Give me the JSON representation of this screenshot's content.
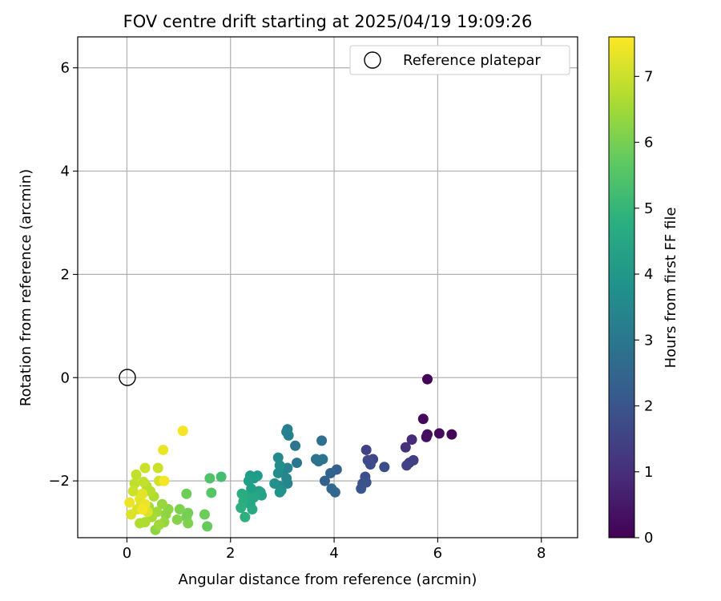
{
  "chart_data": {
    "type": "scatter",
    "title": "FOV centre drift starting at 2025/04/19 19:09:26",
    "xlabel": "Angular distance from reference (arcmin)",
    "ylabel": "Rotation from reference (arcmin)",
    "xlim": [
      -0.95,
      8.7
    ],
    "ylim": [
      -3.1,
      6.6
    ],
    "xticks": [
      0,
      2,
      4,
      6,
      8
    ],
    "yticks": [
      -2,
      0,
      2,
      4,
      6
    ],
    "xtick_labels": [
      "0",
      "2",
      "4",
      "6",
      "8"
    ],
    "ytick_labels": [
      "−2",
      "0",
      "2",
      "4",
      "6"
    ],
    "grid": true,
    "legend": {
      "position": "top-right",
      "entries": [
        "Reference platepar"
      ]
    },
    "reference_point": {
      "x": 0,
      "y": 0
    },
    "colorbar": {
      "label": "Hours from first FF file",
      "colormap": "viridis",
      "range": [
        0,
        7.6
      ],
      "ticks": [
        0,
        1,
        2,
        3,
        4,
        5,
        6,
        7
      ],
      "tick_labels": [
        "0",
        "1",
        "2",
        "3",
        "4",
        "5",
        "6",
        "7"
      ]
    },
    "points": [
      {
        "x": 5.8,
        "y": -0.03,
        "h": 0.05
      },
      {
        "x": 5.72,
        "y": -0.8,
        "h": 0.15
      },
      {
        "x": 5.8,
        "y": -1.1,
        "h": 0.25
      },
      {
        "x": 6.03,
        "y": -1.08,
        "h": 0.2
      },
      {
        "x": 6.27,
        "y": -1.1,
        "h": 0.1
      },
      {
        "x": 5.78,
        "y": -1.15,
        "h": 0.3
      },
      {
        "x": 5.5,
        "y": -1.2,
        "h": 0.9
      },
      {
        "x": 5.38,
        "y": -1.35,
        "h": 1.1
      },
      {
        "x": 5.45,
        "y": -1.65,
        "h": 1.3
      },
      {
        "x": 5.53,
        "y": -1.6,
        "h": 1.4
      },
      {
        "x": 5.4,
        "y": -1.7,
        "h": 1.5
      },
      {
        "x": 4.62,
        "y": -1.4,
        "h": 1.5
      },
      {
        "x": 4.75,
        "y": -1.58,
        "h": 1.6
      },
      {
        "x": 4.7,
        "y": -1.68,
        "h": 1.7
      },
      {
        "x": 4.65,
        "y": -1.6,
        "h": 1.7
      },
      {
        "x": 4.97,
        "y": -1.73,
        "h": 1.8
      },
      {
        "x": 4.6,
        "y": -1.92,
        "h": 1.8
      },
      {
        "x": 4.55,
        "y": -2.05,
        "h": 1.9
      },
      {
        "x": 4.62,
        "y": -2.03,
        "h": 1.9
      },
      {
        "x": 4.52,
        "y": -2.15,
        "h": 2.0
      },
      {
        "x": 4.05,
        "y": -1.78,
        "h": 2.3
      },
      {
        "x": 3.93,
        "y": -1.85,
        "h": 2.4
      },
      {
        "x": 3.82,
        "y": -2.0,
        "h": 2.4
      },
      {
        "x": 3.95,
        "y": -2.15,
        "h": 2.5
      },
      {
        "x": 4.02,
        "y": -2.22,
        "h": 2.5
      },
      {
        "x": 3.76,
        "y": -1.22,
        "h": 2.8
      },
      {
        "x": 3.65,
        "y": -1.58,
        "h": 2.8
      },
      {
        "x": 3.7,
        "y": -1.62,
        "h": 2.9
      },
      {
        "x": 3.78,
        "y": -1.58,
        "h": 2.9
      },
      {
        "x": 3.28,
        "y": -1.65,
        "h": 3.0
      },
      {
        "x": 3.25,
        "y": -1.32,
        "h": 3.0
      },
      {
        "x": 3.1,
        "y": -1.0,
        "h": 3.2
      },
      {
        "x": 3.12,
        "y": -1.12,
        "h": 3.3
      },
      {
        "x": 3.08,
        "y": -1.05,
        "h": 3.3
      },
      {
        "x": 3.1,
        "y": -1.75,
        "h": 3.4
      },
      {
        "x": 3.02,
        "y": -1.8,
        "h": 3.4
      },
      {
        "x": 3.08,
        "y": -1.95,
        "h": 3.5
      },
      {
        "x": 3.1,
        "y": -2.05,
        "h": 3.5
      },
      {
        "x": 2.95,
        "y": -2.1,
        "h": 3.6
      },
      {
        "x": 2.92,
        "y": -1.55,
        "h": 3.6
      },
      {
        "x": 2.95,
        "y": -1.7,
        "h": 3.7
      },
      {
        "x": 2.92,
        "y": -1.85,
        "h": 3.7
      },
      {
        "x": 2.85,
        "y": -2.05,
        "h": 3.8
      },
      {
        "x": 2.98,
        "y": -2.18,
        "h": 3.8
      },
      {
        "x": 2.95,
        "y": -2.22,
        "h": 3.9
      },
      {
        "x": 2.55,
        "y": -2.2,
        "h": 4.0
      },
      {
        "x": 2.52,
        "y": -1.9,
        "h": 4.1
      },
      {
        "x": 2.45,
        "y": -1.95,
        "h": 4.2
      },
      {
        "x": 2.38,
        "y": -1.9,
        "h": 4.2
      },
      {
        "x": 2.35,
        "y": -2.0,
        "h": 4.3
      },
      {
        "x": 2.4,
        "y": -2.15,
        "h": 4.3
      },
      {
        "x": 2.58,
        "y": -2.22,
        "h": 4.4
      },
      {
        "x": 2.6,
        "y": -2.28,
        "h": 4.4
      },
      {
        "x": 2.45,
        "y": -2.32,
        "h": 4.5
      },
      {
        "x": 2.38,
        "y": -2.45,
        "h": 4.5
      },
      {
        "x": 2.42,
        "y": -2.55,
        "h": 4.6
      },
      {
        "x": 2.28,
        "y": -2.28,
        "h": 4.6
      },
      {
        "x": 2.22,
        "y": -2.25,
        "h": 4.7
      },
      {
        "x": 2.25,
        "y": -2.4,
        "h": 4.7
      },
      {
        "x": 2.2,
        "y": -2.52,
        "h": 4.8
      },
      {
        "x": 2.28,
        "y": -2.7,
        "h": 4.8
      },
      {
        "x": 1.82,
        "y": -1.92,
        "h": 5.3
      },
      {
        "x": 1.6,
        "y": -1.95,
        "h": 5.5
      },
      {
        "x": 1.63,
        "y": -2.23,
        "h": 5.6
      },
      {
        "x": 1.15,
        "y": -2.25,
        "h": 5.9
      },
      {
        "x": 1.5,
        "y": -2.65,
        "h": 5.9
      },
      {
        "x": 1.55,
        "y": -2.88,
        "h": 5.8
      },
      {
        "x": 1.18,
        "y": -2.62,
        "h": 6.0
      },
      {
        "x": 1.15,
        "y": -2.7,
        "h": 6.0
      },
      {
        "x": 1.18,
        "y": -2.82,
        "h": 6.1
      },
      {
        "x": 1.02,
        "y": -2.55,
        "h": 6.1
      },
      {
        "x": 0.97,
        "y": -2.75,
        "h": 6.2
      },
      {
        "x": 0.75,
        "y": -2.65,
        "h": 6.3
      },
      {
        "x": 0.8,
        "y": -2.55,
        "h": 6.3
      },
      {
        "x": 0.68,
        "y": -2.45,
        "h": 6.4
      },
      {
        "x": 0.72,
        "y": -2.8,
        "h": 6.4
      },
      {
        "x": 0.55,
        "y": -2.95,
        "h": 6.3
      },
      {
        "x": 0.62,
        "y": -2.85,
        "h": 6.5
      },
      {
        "x": 0.58,
        "y": -2.6,
        "h": 6.5
      },
      {
        "x": 0.48,
        "y": -2.7,
        "h": 6.6
      },
      {
        "x": 0.42,
        "y": -2.5,
        "h": 6.6
      },
      {
        "x": 0.35,
        "y": -2.8,
        "h": 6.7
      },
      {
        "x": 0.25,
        "y": -2.82,
        "h": 6.7
      },
      {
        "x": 0.52,
        "y": -2.3,
        "h": 6.7
      },
      {
        "x": 0.45,
        "y": -2.2,
        "h": 6.8
      },
      {
        "x": 0.38,
        "y": -2.1,
        "h": 6.8
      },
      {
        "x": 0.32,
        "y": -2.02,
        "h": 6.9
      },
      {
        "x": 0.18,
        "y": -1.88,
        "h": 6.9
      },
      {
        "x": 0.15,
        "y": -2.05,
        "h": 6.9
      },
      {
        "x": 0.12,
        "y": -2.2,
        "h": 7.0
      },
      {
        "x": 0.35,
        "y": -1.75,
        "h": 7.0
      },
      {
        "x": 0.6,
        "y": -1.75,
        "h": 7.0
      },
      {
        "x": 0.62,
        "y": -2.0,
        "h": 7.1
      },
      {
        "x": 0.28,
        "y": -2.45,
        "h": 7.1
      },
      {
        "x": 0.2,
        "y": -2.55,
        "h": 7.2
      },
      {
        "x": 0.4,
        "y": -2.6,
        "h": 7.2
      },
      {
        "x": 0.08,
        "y": -2.65,
        "h": 7.2
      },
      {
        "x": 0.3,
        "y": -2.25,
        "h": 7.3
      },
      {
        "x": 0.25,
        "y": -2.35,
        "h": 7.3
      },
      {
        "x": 0.05,
        "y": -2.42,
        "h": 7.4
      },
      {
        "x": 0.35,
        "y": -2.45,
        "h": 7.4
      },
      {
        "x": 0.7,
        "y": -1.4,
        "h": 7.4
      },
      {
        "x": 1.08,
        "y": -1.03,
        "h": 7.5
      },
      {
        "x": 0.72,
        "y": -2.0,
        "h": 7.5
      },
      {
        "x": 0.3,
        "y": -2.55,
        "h": 7.5
      }
    ]
  }
}
